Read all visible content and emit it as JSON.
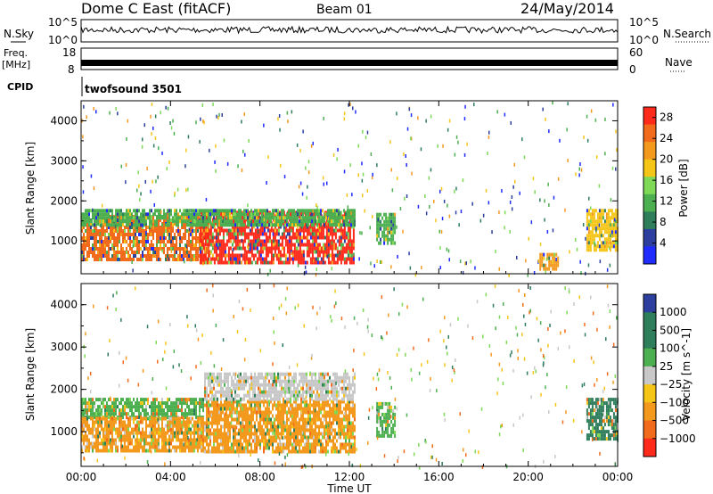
{
  "header": {
    "title": "Dome C East (fitACF)",
    "beam": "Beam 01",
    "date": "24/May/2014"
  },
  "noise_panel": {
    "left_label": "N.Sky",
    "right_label": "N.Search",
    "top_tick": "10^5",
    "bottom_tick": "10^0",
    "right_top_tick": "10^5",
    "right_bottom_tick": "10^0"
  },
  "freq_panel": {
    "left_label_1": "Freq.",
    "left_label_2": "[MHz]",
    "left_top_tick": "18",
    "left_bottom_tick": "8",
    "right_label": "Nave",
    "right_top_tick": "60",
    "right_bottom_tick": "0"
  },
  "cpid_panel": {
    "label": "CPID",
    "program": "twofsound  3501"
  },
  "colors": {
    "blue": "#1f2bff",
    "navy": "#2c3f9e",
    "teal_dark": "#2e7d5b",
    "green": "#4caf50",
    "lime": "#7ed957",
    "yellow": "#f5c518",
    "orange": "#f39a1e",
    "orange_dark": "#f26b1d",
    "red": "#ff2a1a",
    "gray": "#c8c8c8"
  },
  "chart_data": [
    {
      "type": "heatmap",
      "title": "",
      "xlabel": "",
      "ylabel": "Slant Range [km]",
      "x_ticks": [
        "00:00",
        "04:00",
        "08:00",
        "12:00",
        "16:00",
        "20:00",
        "00:00"
      ],
      "y_ticks": [
        "1000",
        "2000",
        "3000",
        "4000"
      ],
      "ylim": [
        180,
        4500
      ],
      "colorbar": {
        "label": "Power [dB]",
        "ticks": [
          "4",
          "8",
          "12",
          "16",
          "20",
          "24",
          "28"
        ],
        "range": [
          0,
          30
        ]
      },
      "regions": [
        {
          "t": [
            0.0,
            5.7
          ],
          "range": [
            550,
            1650
          ],
          "value": 24
        },
        {
          "t": [
            5.3,
            12.2
          ],
          "range": [
            500,
            1750
          ],
          "value": 28
        },
        {
          "t": [
            0.0,
            12.2
          ],
          "range": [
            1400,
            1800
          ],
          "value": 12
        },
        {
          "t": [
            13.2,
            14.0
          ],
          "range": [
            900,
            1700
          ],
          "value": 12
        },
        {
          "t": [
            20.5,
            21.3
          ],
          "range": [
            300,
            700
          ],
          "value": 20
        },
        {
          "t": [
            22.6,
            24.0
          ],
          "range": [
            800,
            1800
          ],
          "value": 16
        }
      ]
    },
    {
      "type": "heatmap",
      "title": "",
      "xlabel": "Time UT",
      "ylabel": "Slant Range [km]",
      "x_ticks": [
        "00:00",
        "04:00",
        "08:00",
        "12:00",
        "16:00",
        "20:00",
        "00:00"
      ],
      "y_ticks": [
        "1000",
        "2000",
        "3000",
        "4000"
      ],
      "ylim": [
        180,
        4500
      ],
      "colorbar": {
        "label": "Velocity [m s^-1]",
        "ticks": [
          "1000",
          "500",
          "100",
          "25",
          "−25",
          "−100",
          "−500",
          "−1000"
        ]
      },
      "regions": [
        {
          "t": [
            0.0,
            5.5
          ],
          "range": [
            1350,
            1800
          ],
          "value": 100
        },
        {
          "t": [
            0.0,
            5.5
          ],
          "range": [
            550,
            1350
          ],
          "value": -100
        },
        {
          "t": [
            5.5,
            12.2
          ],
          "range": [
            500,
            1750
          ],
          "value": -100
        },
        {
          "t": [
            5.5,
            12.2
          ],
          "range": [
            1750,
            2400
          ],
          "value": 25
        },
        {
          "t": [
            13.2,
            14.0
          ],
          "range": [
            900,
            1700
          ],
          "value": 100
        },
        {
          "t": [
            22.6,
            24.0
          ],
          "range": [
            800,
            1800
          ],
          "value": 500
        }
      ]
    }
  ]
}
